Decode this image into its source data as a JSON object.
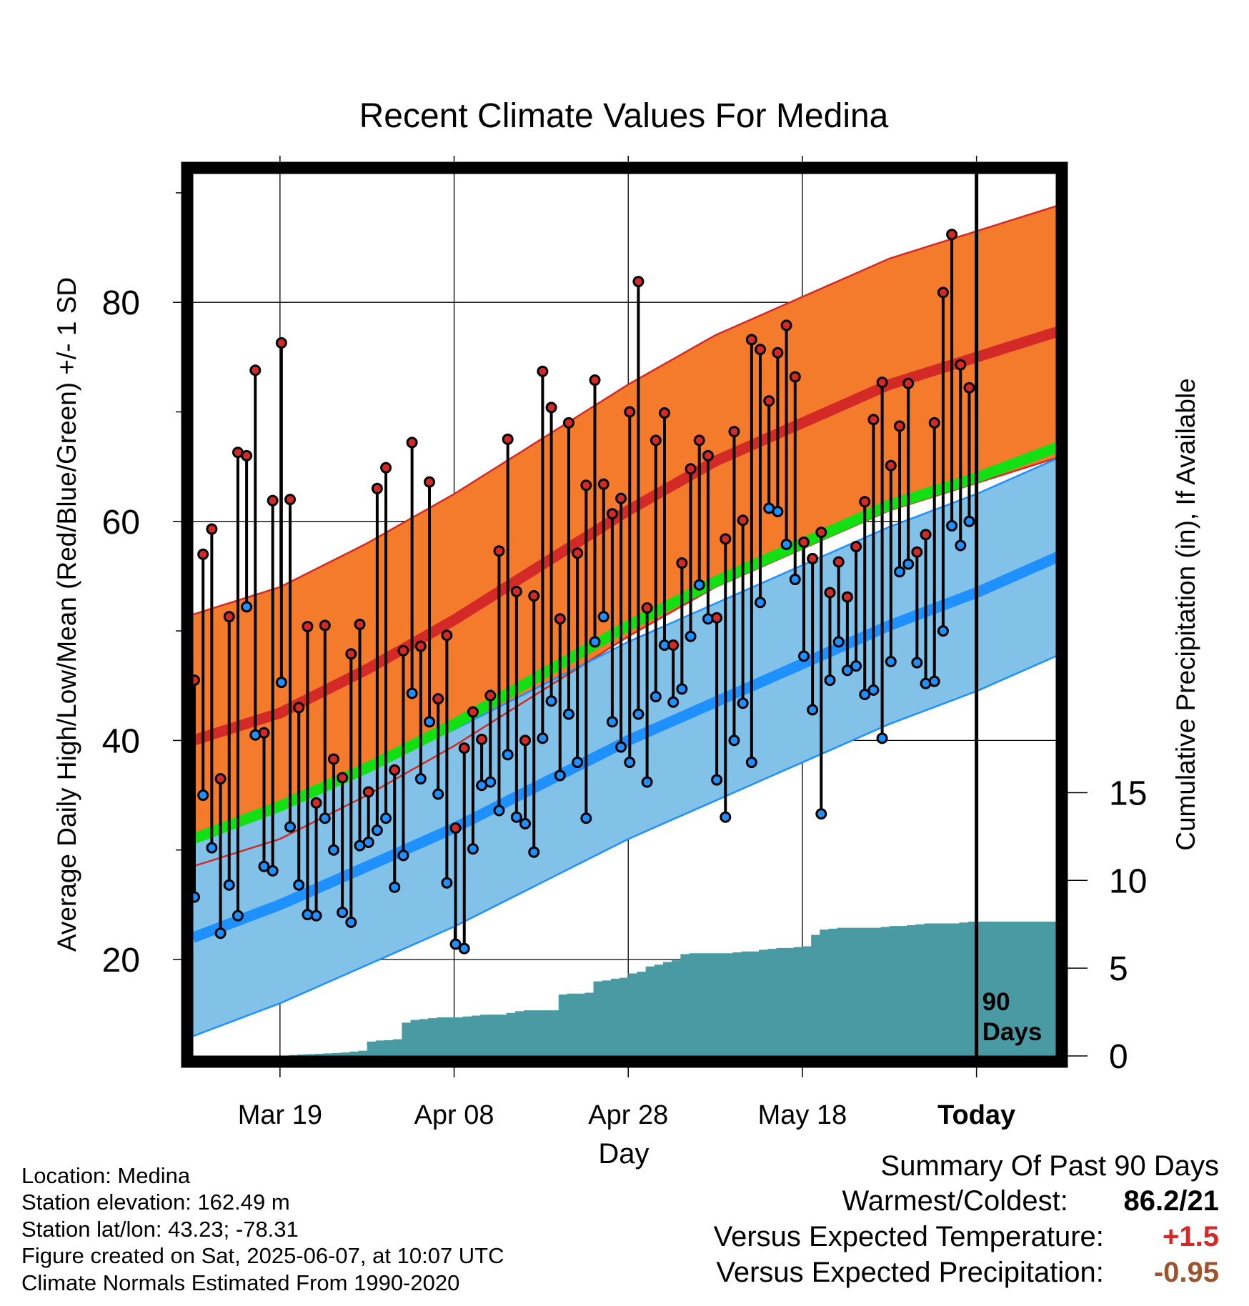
{
  "title": "Recent Climate Values For Medina",
  "xlabel": "Day",
  "ylabel_left": "Average Daily High/Low/Mean (Red/Blue/Green) +/- 1 SD",
  "ylabel_right": "Cumulative Precipitation (in), If Available",
  "period_label": [
    "90",
    "Days"
  ],
  "footer": {
    "location": "Location: Medina",
    "elevation": "Station elevation: 162.49 m",
    "latlon": "Station lat/lon: 43.23; -78.31",
    "created": "Figure created on Sat, 2025-06-07, at 10:07 UTC",
    "normals": "Climate Normals Estimated From 1990-2020"
  },
  "summary": {
    "title": "Summary Of Past 90 Days",
    "warmest_label": "Warmest/Coldest:",
    "warmest_value": "86.2/21",
    "temp_label": "Versus Expected Temperature:",
    "temp_value": "+1.5",
    "precip_label": "Versus Expected Precipitation:",
    "precip_value": "-0.95"
  },
  "colors": {
    "high_band": "#f47b2c",
    "high_mean": "#d42a27",
    "low_band": "#82c1e8",
    "low_mean": "#1e90ff",
    "mean_line": "#12e012",
    "precip": "#4a9aa4",
    "temp_delta": "#d42a27",
    "precip_delta": "#a0522d",
    "high_dot": "#d42a27",
    "low_dot": "#1e90ff"
  },
  "chart_data": {
    "type": "line",
    "x_unit": "day index (0 = Mar 09, 90 = Jun 07 = Today)",
    "x_range": [
      0,
      100
    ],
    "y_left_range": [
      11.5,
      91.5
    ],
    "y_right_range": [
      0,
      20
    ],
    "x_ticks": [
      {
        "day": 10,
        "label": "Mar 19"
      },
      {
        "day": 30,
        "label": "Apr 08"
      },
      {
        "day": 50,
        "label": "Apr 28"
      },
      {
        "day": 70,
        "label": "May 18"
      },
      {
        "day": 90,
        "label": "Today"
      }
    ],
    "y_left_ticks": [
      20,
      40,
      60,
      80
    ],
    "y_left_minor_ticks": [
      30,
      50,
      70,
      90
    ],
    "y_right_ticks": [
      0,
      5,
      10,
      15
    ],
    "today_day": 90,
    "normals": {
      "days": [
        0,
        10,
        20,
        30,
        40,
        50,
        60,
        70,
        80,
        90,
        100
      ],
      "high_mean": [
        40.0,
        42.5,
        46.5,
        51.0,
        56.0,
        61.0,
        65.5,
        69.0,
        72.5,
        75.0,
        77.5
      ],
      "high_sd": 11.5,
      "low_mean": [
        22.0,
        25.0,
        28.5,
        32.0,
        36.0,
        40.0,
        43.5,
        47.0,
        50.5,
        53.5,
        57.0
      ],
      "low_sd": 9.0,
      "mean": [
        31.0,
        34.0,
        37.5,
        41.5,
        46.0,
        50.5,
        54.5,
        58.0,
        61.5,
        64.0,
        67.0
      ]
    },
    "daily": {
      "days": [
        0,
        1,
        2,
        3,
        4,
        5,
        6,
        7,
        8,
        9,
        10,
        11,
        12,
        13,
        14,
        15,
        16,
        17,
        18,
        19,
        20,
        21,
        22,
        23,
        24,
        25,
        26,
        27,
        28,
        29,
        30,
        31,
        32,
        33,
        34,
        35,
        36,
        37,
        38,
        39,
        40,
        41,
        42,
        43,
        44,
        45,
        46,
        47,
        48,
        49,
        50,
        51,
        52,
        53,
        54,
        55,
        56,
        57,
        58,
        59,
        60,
        61,
        62,
        63,
        64,
        65,
        66,
        67,
        68,
        69,
        70,
        71,
        72,
        73,
        74,
        75,
        76,
        77,
        78,
        79,
        80,
        81,
        82,
        83,
        84,
        85,
        86,
        87,
        88,
        89
      ],
      "high": [
        45.5,
        57,
        59.3,
        36.5,
        51.3,
        66.3,
        66,
        73.8,
        40.7,
        61.9,
        76.3,
        62,
        43,
        50.4,
        34.3,
        50.5,
        38.3,
        36.6,
        47.9,
        50.6,
        35.3,
        63,
        64.9,
        37.3,
        48.2,
        67.2,
        48.6,
        63.6,
        43.8,
        49.6,
        32,
        39.3,
        42.6,
        40.1,
        44.1,
        57.3,
        67.5,
        53.6,
        40,
        53.2,
        73.7,
        70.4,
        51.1,
        69,
        57.1,
        63.3,
        72.9,
        63.4,
        60.7,
        62.1,
        70,
        81.9,
        52.1,
        67.4,
        69.9,
        48.7,
        56.2,
        64.8,
        67.4,
        66,
        51.2,
        58.4,
        68.2,
        60.1,
        76.6,
        75.7,
        71,
        75.4,
        77.9,
        73.2,
        58.1,
        56.6,
        59,
        53.5,
        56.3,
        53.1,
        57.7,
        61.8,
        69.3,
        72.7,
        65.1,
        68.7,
        72.6,
        57.2,
        58.8,
        69,
        80.9,
        86.2,
        74.3,
        72.2
      ],
      "low": [
        25.7,
        35,
        30.2,
        22.4,
        26.8,
        24,
        52.2,
        40.5,
        28.5,
        28.1,
        45.3,
        32.1,
        26.8,
        24.1,
        24,
        32.9,
        30,
        24.3,
        23.4,
        30.4,
        30.7,
        31.8,
        32.9,
        26.6,
        29.5,
        44.3,
        36.5,
        41.7,
        35.1,
        27,
        21.4,
        21,
        30.1,
        35.9,
        36.2,
        33.6,
        38.7,
        33,
        32.4,
        29.8,
        40.2,
        43.6,
        36.8,
        42.4,
        38,
        32.9,
        49,
        51.3,
        41.7,
        39.4,
        38,
        42.4,
        36.2,
        44,
        48.7,
        43.5,
        44.7,
        49.5,
        54.2,
        51.1,
        36.4,
        33,
        40,
        43.4,
        38,
        52.6,
        61.2,
        60.9,
        57.9,
        54.7,
        47.7,
        42.8,
        33.3,
        45.5,
        49,
        46.4,
        46.8,
        44.2,
        44.6,
        40.2,
        47.2,
        55.4,
        56.1,
        47.1,
        45.2,
        45.4,
        50,
        59.6,
        57.8,
        60
      ]
    },
    "precip": {
      "days": [
        0,
        5,
        9,
        10,
        11,
        12,
        13,
        14,
        15,
        16,
        17,
        18,
        19,
        20,
        21,
        22,
        23,
        24,
        25,
        26,
        27,
        28,
        29,
        30,
        31,
        32,
        33,
        34,
        35,
        36,
        37,
        38,
        39,
        40,
        41,
        42,
        43,
        44,
        45,
        46,
        47,
        48,
        49,
        50,
        51,
        52,
        53,
        54,
        55,
        56,
        57,
        58,
        59,
        60,
        61,
        62,
        63,
        64,
        65,
        66,
        67,
        68,
        69,
        70,
        71,
        72,
        73,
        74,
        75,
        76,
        77,
        78,
        79,
        80,
        81,
        82,
        83,
        84,
        85,
        86,
        87,
        88,
        89,
        90,
        91,
        92,
        93,
        94,
        95,
        96,
        97,
        98,
        99,
        100
      ],
      "cum_in": [
        0,
        0,
        0,
        0.02,
        0.05,
        0.08,
        0.1,
        0.12,
        0.15,
        0.17,
        0.2,
        0.25,
        0.3,
        0.82,
        0.88,
        0.9,
        0.95,
        1.9,
        2.05,
        2.1,
        2.15,
        2.2,
        2.2,
        2.2,
        2.25,
        2.3,
        2.35,
        2.35,
        2.35,
        2.45,
        2.55,
        2.6,
        2.6,
        2.6,
        2.6,
        3.5,
        3.55,
        3.55,
        3.6,
        4.25,
        4.3,
        4.4,
        4.45,
        4.7,
        4.8,
        5.1,
        5.2,
        5.35,
        5.45,
        5.8,
        5.85,
        5.85,
        5.85,
        5.85,
        5.85,
        5.9,
        5.95,
        5.95,
        6.05,
        6.1,
        6.15,
        6.15,
        6.2,
        6.25,
        6.9,
        7.2,
        7.25,
        7.3,
        7.3,
        7.3,
        7.3,
        7.3,
        7.35,
        7.4,
        7.4,
        7.45,
        7.5,
        7.55,
        7.55,
        7.55,
        7.55,
        7.6,
        7.65,
        7.65,
        7.65,
        7.65,
        7.65,
        7.65,
        7.65,
        7.65,
        7.65,
        7.65,
        7.65,
        7.65
      ]
    }
  }
}
